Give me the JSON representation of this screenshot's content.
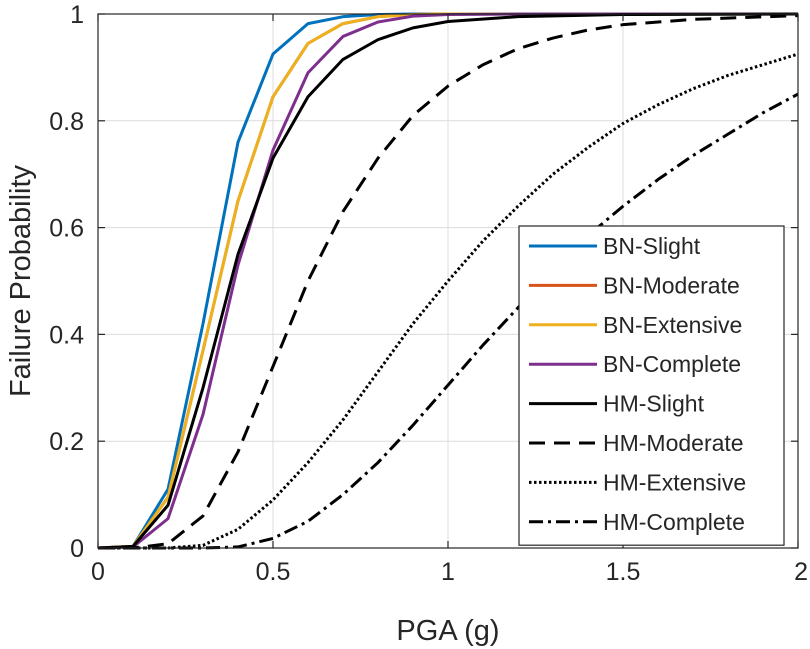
{
  "chart_data": {
    "type": "line",
    "title": "",
    "xlabel": "PGA (g)",
    "ylabel": "Failure Probability",
    "xlim": [
      0,
      2
    ],
    "ylim": [
      0,
      1
    ],
    "xticks": [
      0,
      0.5,
      1,
      1.5,
      2
    ],
    "xtick_labels": [
      "0",
      "0.5",
      "1",
      "1.5",
      "2"
    ],
    "yticks": [
      0,
      0.2,
      0.4,
      0.6,
      0.8,
      1
    ],
    "ytick_labels": [
      "0",
      "0.2",
      "0.4",
      "0.6",
      "0.8",
      "1"
    ],
    "grid": true,
    "legend_position": "lower-right",
    "series": [
      {
        "name": "BN-Slight",
        "color": "#0072BD",
        "style": "solid",
        "x": [
          0,
          0.1,
          0.2,
          0.3,
          0.4,
          0.5,
          0.6,
          0.7,
          0.8,
          0.9,
          1.0,
          1.2,
          1.5,
          2.0
        ],
        "y": [
          0,
          0.003,
          0.11,
          0.42,
          0.76,
          0.925,
          0.982,
          0.995,
          0.999,
          1.0,
          1.0,
          1.0,
          1.0,
          1.0
        ]
      },
      {
        "name": "BN-Moderate",
        "color": "#D95319",
        "style": "solid",
        "x": [
          0,
          0.1,
          0.2,
          0.3,
          0.4,
          0.5,
          0.6,
          0.7,
          0.8,
          0.9,
          1.0,
          1.2,
          1.5,
          2.0
        ],
        "y": [
          0,
          0.003,
          0.095,
          0.37,
          0.65,
          0.845,
          0.945,
          0.982,
          0.995,
          0.999,
          1.0,
          1.0,
          1.0,
          1.0
        ]
      },
      {
        "name": "BN-Extensive",
        "color": "#EDB120",
        "style": "solid",
        "x": [
          0,
          0.1,
          0.2,
          0.3,
          0.4,
          0.5,
          0.6,
          0.7,
          0.8,
          0.9,
          1.0,
          1.2,
          1.5,
          2.0
        ],
        "y": [
          0,
          0.003,
          0.095,
          0.37,
          0.65,
          0.845,
          0.945,
          0.982,
          0.995,
          0.999,
          1.0,
          1.0,
          1.0,
          1.0
        ]
      },
      {
        "name": "BN-Complete",
        "color": "#7E2F8E",
        "style": "solid",
        "x": [
          0,
          0.1,
          0.2,
          0.3,
          0.4,
          0.5,
          0.6,
          0.7,
          0.8,
          0.9,
          1.0,
          1.2,
          1.5,
          2.0
        ],
        "y": [
          0,
          0.002,
          0.055,
          0.25,
          0.53,
          0.745,
          0.89,
          0.958,
          0.985,
          0.996,
          0.999,
          1.0,
          1.0,
          1.0
        ]
      },
      {
        "name": "HM-Slight",
        "color": "#000000",
        "style": "solid",
        "x": [
          0,
          0.1,
          0.2,
          0.3,
          0.4,
          0.5,
          0.6,
          0.7,
          0.8,
          0.9,
          1.0,
          1.2,
          1.5,
          2.0
        ],
        "y": [
          0,
          0.003,
          0.08,
          0.3,
          0.55,
          0.73,
          0.845,
          0.915,
          0.952,
          0.974,
          0.986,
          0.995,
          0.999,
          1.0
        ]
      },
      {
        "name": "HM-Moderate",
        "color": "#000000",
        "style": "dashed",
        "x": [
          0,
          0.1,
          0.2,
          0.3,
          0.4,
          0.5,
          0.6,
          0.7,
          0.8,
          0.9,
          1.0,
          1.1,
          1.2,
          1.3,
          1.4,
          1.5,
          1.7,
          2.0
        ],
        "y": [
          0,
          0.0,
          0.008,
          0.06,
          0.18,
          0.34,
          0.5,
          0.63,
          0.73,
          0.81,
          0.865,
          0.905,
          0.935,
          0.955,
          0.97,
          0.98,
          0.99,
          0.997
        ]
      },
      {
        "name": "HM-Extensive",
        "color": "#000000",
        "style": "dotted",
        "x": [
          0,
          0.2,
          0.3,
          0.4,
          0.5,
          0.6,
          0.7,
          0.8,
          0.9,
          1.0,
          1.1,
          1.2,
          1.3,
          1.4,
          1.5,
          1.6,
          1.7,
          1.8,
          1.9,
          2.0
        ],
        "y": [
          0,
          0.0,
          0.005,
          0.035,
          0.09,
          0.16,
          0.24,
          0.33,
          0.42,
          0.5,
          0.575,
          0.64,
          0.7,
          0.75,
          0.795,
          0.83,
          0.86,
          0.885,
          0.905,
          0.925
        ]
      },
      {
        "name": "HM-Complete",
        "color": "#000000",
        "style": "dashdot",
        "x": [
          0,
          0.3,
          0.4,
          0.5,
          0.6,
          0.7,
          0.8,
          0.9,
          1.0,
          1.1,
          1.2,
          1.3,
          1.4,
          1.5,
          1.6,
          1.7,
          1.8,
          1.9,
          2.0
        ],
        "y": [
          0,
          0.0,
          0.002,
          0.018,
          0.05,
          0.1,
          0.16,
          0.23,
          0.305,
          0.38,
          0.45,
          0.52,
          0.585,
          0.64,
          0.69,
          0.735,
          0.775,
          0.815,
          0.85
        ]
      }
    ]
  }
}
